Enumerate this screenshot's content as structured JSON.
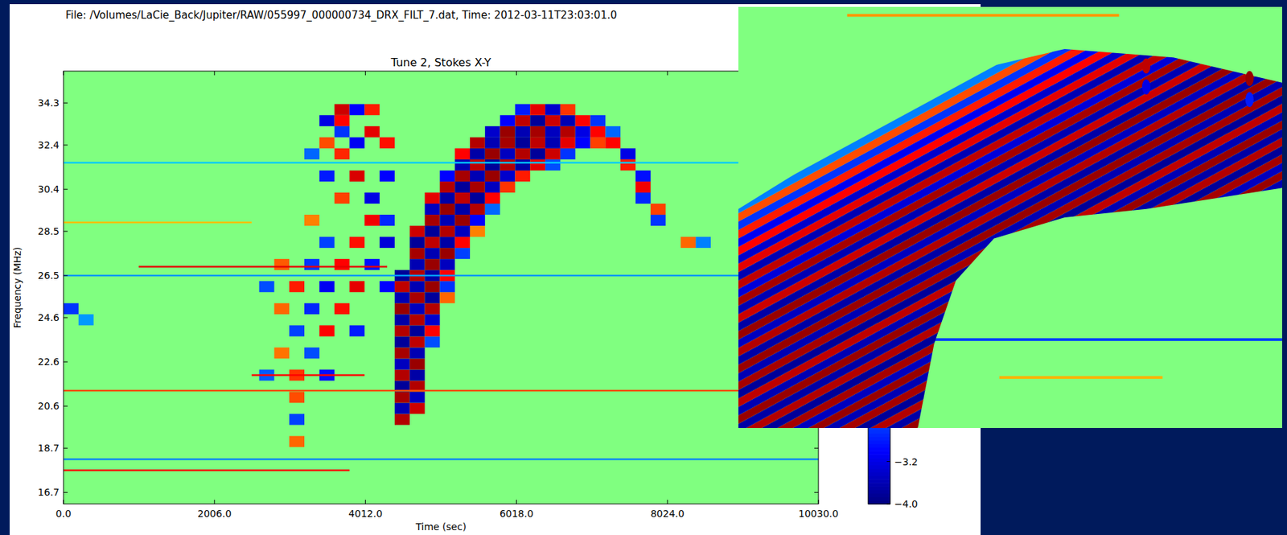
{
  "chart_data": [
    {
      "type": "heatmap",
      "title": "Tune 2, Stokes X-Y",
      "subtitle": "File: /Volumes/LaCie_Back/Jupiter/RAW/055997_000000734_DRX_FILT_7.dat, Time: 2012-03-11T23:03:01.0",
      "x_label": "Time (sec)",
      "y_label": "Frequency (MHz)",
      "xlim": [
        0,
        10030
      ],
      "xticks": [
        {
          "value": 0,
          "label": "0.0"
        },
        {
          "value": 2006,
          "label": "2006.0"
        },
        {
          "value": 4012,
          "label": "4012.0"
        },
        {
          "value": 6018,
          "label": "6018.0"
        },
        {
          "value": 8024,
          "label": "8024.0"
        },
        {
          "value": 10030,
          "label": "10030.0"
        }
      ],
      "ylim": [
        16.18,
        35.74
      ],
      "yticks": [
        16.7,
        18.7,
        20.6,
        22.6,
        24.6,
        26.5,
        28.5,
        30.4,
        32.4,
        34.3
      ],
      "cell_size": [
        200,
        0.5
      ],
      "cells": [
        [
          4500,
          20.0,
          3.6
        ],
        [
          4500,
          20.5,
          -3.6
        ],
        [
          4700,
          20.5,
          3.4
        ],
        [
          4500,
          21.0,
          3.7
        ],
        [
          4700,
          21.0,
          -3.5
        ],
        [
          4500,
          21.5,
          -3.8
        ],
        [
          4700,
          21.5,
          3.6
        ],
        [
          4500,
          22.0,
          3.6
        ],
        [
          4700,
          22.0,
          -3.7
        ],
        [
          4500,
          22.5,
          -3.5
        ],
        [
          4700,
          22.5,
          3.8
        ],
        [
          4500,
          23.0,
          3.7
        ],
        [
          4700,
          23.0,
          -3.6
        ],
        [
          4500,
          23.5,
          -3.8
        ],
        [
          4700,
          23.5,
          3.5
        ],
        [
          4900,
          23.5,
          -2.4
        ],
        [
          4500,
          24.0,
          3.6
        ],
        [
          4700,
          24.0,
          -3.8
        ],
        [
          4900,
          24.0,
          3.0
        ],
        [
          4500,
          24.5,
          -3.7
        ],
        [
          4700,
          24.5,
          3.6
        ],
        [
          4900,
          24.5,
          -3.4
        ],
        [
          4500,
          25.0,
          3.8
        ],
        [
          4700,
          25.0,
          -3.5
        ],
        [
          4900,
          25.0,
          3.6
        ],
        [
          4500,
          25.5,
          -3.6
        ],
        [
          4700,
          25.5,
          3.7
        ],
        [
          4900,
          25.5,
          -3.8
        ],
        [
          5100,
          25.5,
          2.2
        ],
        [
          4500,
          26.0,
          3.5
        ],
        [
          4700,
          26.0,
          -3.6
        ],
        [
          4900,
          26.0,
          3.8
        ],
        [
          5100,
          26.0,
          -2.6
        ],
        [
          4500,
          26.5,
          -3.8
        ],
        [
          4700,
          26.5,
          3.6
        ],
        [
          4900,
          26.5,
          -3.7
        ],
        [
          5100,
          26.5,
          3.0
        ],
        [
          4700,
          27.0,
          -3.6
        ],
        [
          4900,
          27.0,
          3.8
        ],
        [
          5100,
          27.0,
          -3.5
        ],
        [
          4700,
          27.5,
          3.7
        ],
        [
          4900,
          27.5,
          -3.6
        ],
        [
          5100,
          27.5,
          3.8
        ],
        [
          5300,
          27.5,
          -2.5
        ],
        [
          4700,
          28.0,
          -3.8
        ],
        [
          4900,
          28.0,
          3.5
        ],
        [
          5100,
          28.0,
          -3.7
        ],
        [
          5300,
          28.0,
          3.0
        ],
        [
          4700,
          28.5,
          3.4
        ],
        [
          4900,
          28.5,
          -3.8
        ],
        [
          5100,
          28.5,
          3.6
        ],
        [
          5300,
          28.5,
          -3.5
        ],
        [
          5500,
          28.5,
          2.0
        ],
        [
          4900,
          29.0,
          3.7
        ],
        [
          5100,
          29.0,
          -3.6
        ],
        [
          5300,
          29.0,
          3.8
        ],
        [
          5500,
          29.0,
          -3.0
        ],
        [
          4900,
          29.5,
          -3.5
        ],
        [
          5100,
          29.5,
          3.8
        ],
        [
          5300,
          29.5,
          -3.7
        ],
        [
          5500,
          29.5,
          3.6
        ],
        [
          5700,
          29.5,
          -2.2
        ],
        [
          4900,
          30.0,
          3.2
        ],
        [
          5100,
          30.0,
          -3.7
        ],
        [
          5300,
          30.0,
          3.5
        ],
        [
          5500,
          30.0,
          -3.8
        ],
        [
          5700,
          30.0,
          3.0
        ],
        [
          5100,
          30.5,
          3.6
        ],
        [
          5300,
          30.5,
          -3.8
        ],
        [
          5500,
          30.5,
          3.7
        ],
        [
          5700,
          30.5,
          -3.5
        ],
        [
          5900,
          30.5,
          2.6
        ],
        [
          5100,
          31.0,
          -3.0
        ],
        [
          5300,
          31.0,
          3.7
        ],
        [
          5500,
          31.0,
          -3.6
        ],
        [
          5700,
          31.0,
          3.8
        ],
        [
          5900,
          31.0,
          -3.4
        ],
        [
          6100,
          31.0,
          2.8
        ],
        [
          5300,
          31.5,
          -3.6
        ],
        [
          5500,
          31.5,
          3.5
        ],
        [
          5700,
          31.5,
          -3.8
        ],
        [
          5900,
          31.5,
          3.6
        ],
        [
          6100,
          31.5,
          -3.7
        ],
        [
          6300,
          31.5,
          3.2
        ],
        [
          6500,
          31.5,
          -2.4
        ],
        [
          5300,
          32.0,
          3.0
        ],
        [
          5500,
          32.0,
          -3.7
        ],
        [
          5700,
          32.0,
          3.8
        ],
        [
          5900,
          32.0,
          -3.5
        ],
        [
          6100,
          32.0,
          3.6
        ],
        [
          6300,
          32.0,
          -3.8
        ],
        [
          6500,
          32.0,
          3.4
        ],
        [
          6700,
          32.0,
          -2.6
        ],
        [
          5500,
          32.5,
          3.6
        ],
        [
          5700,
          32.5,
          -3.6
        ],
        [
          5900,
          32.5,
          3.7
        ],
        [
          6100,
          32.5,
          -3.8
        ],
        [
          6300,
          32.5,
          3.5
        ],
        [
          6500,
          32.5,
          -3.6
        ],
        [
          6700,
          32.5,
          3.2
        ],
        [
          6900,
          32.5,
          -3.0
        ],
        [
          7100,
          32.5,
          2.5
        ],
        [
          5700,
          33.0,
          -3.4
        ],
        [
          5900,
          33.0,
          3.8
        ],
        [
          6100,
          33.0,
          -3.6
        ],
        [
          6300,
          33.0,
          3.7
        ],
        [
          6500,
          33.0,
          -3.5
        ],
        [
          6700,
          33.0,
          3.6
        ],
        [
          6900,
          33.0,
          -3.2
        ],
        [
          7100,
          33.0,
          3.0
        ],
        [
          7300,
          33.0,
          -2.2
        ],
        [
          5900,
          33.5,
          -3.0
        ],
        [
          6100,
          33.5,
          3.5
        ],
        [
          6300,
          33.5,
          -3.8
        ],
        [
          6500,
          33.5,
          3.4
        ],
        [
          6700,
          33.5,
          -3.6
        ],
        [
          6900,
          33.5,
          3.0
        ],
        [
          7100,
          33.5,
          -2.6
        ],
        [
          6100,
          34.0,
          -2.8
        ],
        [
          6300,
          34.0,
          3.2
        ],
        [
          6500,
          34.0,
          -3.4
        ],
        [
          6700,
          34.0,
          2.6
        ],
        [
          7300,
          32.5,
          3.0
        ],
        [
          7500,
          32.0,
          -3.2
        ],
        [
          7500,
          31.5,
          2.8
        ],
        [
          7700,
          31.0,
          -2.9
        ],
        [
          7700,
          30.5,
          3.1
        ],
        [
          7700,
          30.0,
          -2.7
        ],
        [
          7900,
          29.5,
          2.5
        ],
        [
          7900,
          29.0,
          -2.6
        ],
        [
          8300,
          28.0,
          2.2
        ],
        [
          8500,
          28.0,
          -2.0
        ],
        [
          3500,
          33.5,
          -3.2
        ],
        [
          3700,
          33.5,
          3.0
        ],
        [
          3700,
          34.0,
          3.4
        ],
        [
          3900,
          34.0,
          -3.0
        ],
        [
          4100,
          34.0,
          2.8
        ],
        [
          3700,
          33.0,
          -2.6
        ],
        [
          4100,
          33.0,
          3.2
        ],
        [
          3500,
          32.5,
          2.4
        ],
        [
          3900,
          32.5,
          -3.1
        ],
        [
          4300,
          32.5,
          2.9
        ],
        [
          3300,
          32.0,
          -2.2
        ],
        [
          3700,
          32.0,
          2.7
        ],
        [
          3500,
          31.0,
          -2.8
        ],
        [
          3900,
          31.0,
          3.3
        ],
        [
          4300,
          31.0,
          -3.0
        ],
        [
          3700,
          30.0,
          2.5
        ],
        [
          4100,
          30.0,
          -3.2
        ],
        [
          3300,
          29.0,
          2.0
        ],
        [
          4100,
          29.0,
          3.1
        ],
        [
          4300,
          29.0,
          -2.7
        ],
        [
          3500,
          28.0,
          -2.5
        ],
        [
          3900,
          28.0,
          2.9
        ],
        [
          4300,
          28.0,
          -3.3
        ],
        [
          2900,
          27.0,
          2.3
        ],
        [
          3300,
          27.0,
          -2.6
        ],
        [
          3700,
          27.0,
          3.0
        ],
        [
          4100,
          27.0,
          -2.9
        ],
        [
          2700,
          26.0,
          -2.4
        ],
        [
          3100,
          26.0,
          2.8
        ],
        [
          3500,
          26.0,
          -3.1
        ],
        [
          3900,
          26.0,
          3.2
        ],
        [
          4300,
          26.0,
          -3.0
        ],
        [
          2900,
          25.0,
          2.2
        ],
        [
          3300,
          25.0,
          -2.7
        ],
        [
          3700,
          25.0,
          2.9
        ],
        [
          3100,
          24.0,
          -2.5
        ],
        [
          3500,
          24.0,
          3.0
        ],
        [
          3900,
          24.0,
          -2.8
        ],
        [
          2900,
          23.0,
          2.1
        ],
        [
          3300,
          23.0,
          -2.4
        ],
        [
          2700,
          22.0,
          -2.3
        ],
        [
          3100,
          22.0,
          2.6
        ],
        [
          3500,
          22.0,
          -2.9
        ],
        [
          3100,
          21.0,
          2.4
        ],
        [
          3100,
          20.0,
          -2.5
        ],
        [
          3100,
          19.0,
          2.2
        ],
        [
          100,
          25.0,
          -2.6
        ],
        [
          300,
          24.5,
          -1.8
        ]
      ],
      "rfi_lines": [
        [
          26.9,
          1000,
          4300,
          3.2
        ],
        [
          26.5,
          0,
          10030,
          -1.8
        ],
        [
          21.3,
          0,
          10030,
          2.4
        ],
        [
          18.2,
          0,
          10030,
          -2.0
        ],
        [
          17.7,
          0,
          3800,
          3.0
        ],
        [
          31.6,
          0,
          10030,
          -1.4
        ],
        [
          28.9,
          0,
          2500,
          1.5
        ],
        [
          22.0,
          2500,
          4000,
          3.0
        ]
      ],
      "color_range": [
        -4,
        4
      ],
      "colorbar_ticks": [
        {
          "value": -4,
          "label": "−4.0"
        },
        {
          "value": -3.2,
          "label": "−3.2"
        }
      ]
    },
    {
      "type": "heatmap",
      "tick_labels": false,
      "xlim": [
        0,
        100
      ],
      "ylim": [
        0,
        100
      ],
      "band": [
        [
          0,
          0
        ],
        [
          33,
          0
        ],
        [
          36,
          20
        ],
        [
          40,
          35
        ],
        [
          47,
          45
        ],
        [
          60,
          50
        ],
        [
          75,
          52
        ],
        [
          90,
          55
        ],
        [
          100,
          57
        ],
        [
          100,
          82
        ],
        [
          80,
          88
        ],
        [
          60,
          90
        ],
        [
          40,
          84
        ],
        [
          30,
          78
        ],
        [
          20,
          70
        ],
        [
          10,
          60
        ],
        [
          0,
          52
        ]
      ],
      "stripe_slope": 0.7,
      "stripes": [
        [
          -23,
          3.8
        ],
        [
          -21,
          -3.7
        ],
        [
          -19,
          3.6
        ],
        [
          -17,
          -3.8
        ],
        [
          -15,
          3.7
        ],
        [
          -13,
          -3.6
        ],
        [
          -11,
          3.8
        ],
        [
          -9,
          -3.5
        ],
        [
          -7,
          3.7
        ],
        [
          -5,
          -3.8
        ],
        [
          -3,
          3.6
        ],
        [
          -1,
          -3.7
        ],
        [
          1,
          3.8
        ],
        [
          3,
          -3.6
        ],
        [
          5,
          3.5
        ],
        [
          7,
          -3.8
        ],
        [
          9,
          3.7
        ],
        [
          11,
          -3.6
        ],
        [
          13,
          3.8
        ],
        [
          15,
          -3.7
        ],
        [
          17,
          3.6
        ],
        [
          19,
          -3.5
        ],
        [
          21,
          3.8
        ],
        [
          23,
          -3.7
        ],
        [
          25,
          3.4
        ],
        [
          27,
          -3.6
        ],
        [
          29,
          3.7
        ],
        [
          31,
          -3.3
        ],
        [
          33,
          3.5
        ],
        [
          35,
          -3.6
        ],
        [
          37,
          3.2
        ],
        [
          39,
          -3.4
        ],
        [
          41,
          3.0
        ],
        [
          43,
          -3.1
        ],
        [
          45,
          2.8
        ],
        [
          47,
          -2.6
        ],
        [
          49,
          2.4
        ],
        [
          51,
          -2.0
        ]
      ],
      "spots": [
        [
          75,
          86,
          3.5
        ],
        [
          75,
          81,
          -3.2
        ],
        [
          94,
          83,
          3.8
        ],
        [
          94,
          78,
          -2.8
        ]
      ],
      "lines": [
        [
          98,
          20,
          70,
          1.8
        ],
        [
          21,
          34,
          100,
          -2.5
        ],
        [
          12,
          48,
          78,
          1.6
        ]
      ],
      "color_range": [
        -4,
        4
      ]
    }
  ]
}
